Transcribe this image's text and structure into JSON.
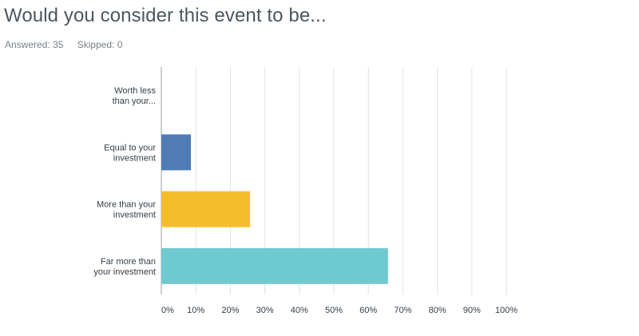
{
  "question": {
    "title": "Would you consider this event to be...",
    "answered_label": "Answered: 35",
    "skipped_label": "Skipped: 0"
  },
  "colors": {
    "grid": "#dfe2e5",
    "axis": "#9aa2a9",
    "text": "#333e48"
  },
  "chart_data": {
    "type": "bar",
    "orientation": "horizontal",
    "categories": [
      [
        "Worth less",
        "than your..."
      ],
      [
        "Equal to your",
        "investment"
      ],
      [
        "More than your",
        "investment"
      ],
      [
        "Far more than",
        "your investment"
      ]
    ],
    "values": [
      0,
      8.57,
      25.71,
      65.71
    ],
    "bar_colors": [
      "#507cb6",
      "#507cb6",
      "#f6bd2b",
      "#6ecad0"
    ],
    "xlim": [
      0,
      100
    ],
    "xticks": [
      0,
      10,
      20,
      30,
      40,
      50,
      60,
      70,
      80,
      90,
      100
    ],
    "xtick_labels": [
      "0%",
      "10%",
      "20%",
      "30%",
      "40%",
      "50%",
      "60%",
      "70%",
      "80%",
      "90%",
      "100%"
    ],
    "grid": true,
    "title": "",
    "xlabel": "",
    "ylabel": ""
  }
}
